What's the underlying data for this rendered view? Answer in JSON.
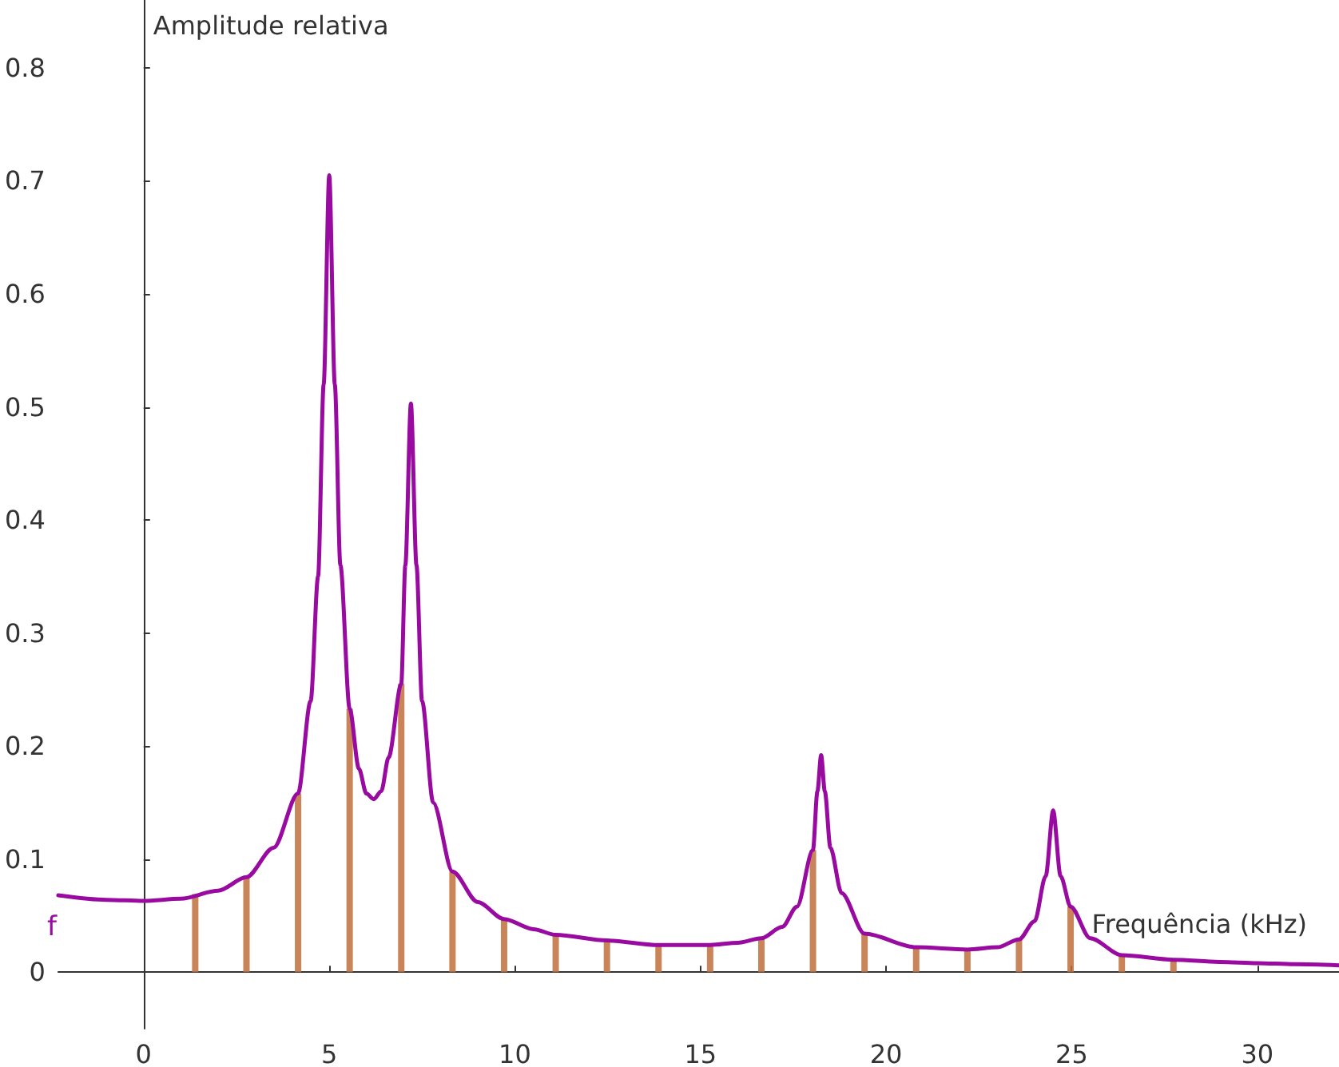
{
  "chart_data": {
    "type": "line",
    "xlabel": "Frequência (kHz)",
    "ylabel": "Amplitude relativa",
    "xlim": [
      -2.3,
      32.2
    ],
    "ylim": [
      -0.05,
      0.86
    ],
    "xticks": [
      0,
      5,
      10,
      15,
      20,
      25,
      30
    ],
    "yticks": [
      0,
      0.1,
      0.2,
      0.3,
      0.4,
      0.5,
      0.6,
      0.7,
      0.8
    ],
    "legend": false,
    "marker": "none",
    "line_style": "solid",
    "series": [
      {
        "type": "bar",
        "color": "#c0703c",
        "x": [
          1.39,
          2.77,
          4.16,
          5.55,
          6.94,
          8.32,
          9.71,
          11.1,
          12.48,
          13.87,
          15.26,
          16.64,
          18.03,
          19.42,
          20.81,
          22.19,
          23.58,
          24.97,
          26.35,
          27.74
        ],
        "values": [
          0.069,
          0.084,
          0.158,
          0.233,
          0.255,
          0.089,
          0.047,
          0.033,
          0.028,
          0.024,
          0.024,
          0.03,
          0.108,
          0.034,
          0.022,
          0.02,
          0.029,
          0.058,
          0.015,
          0.011
        ]
      },
      {
        "name": "f",
        "color": "#990aa0",
        "x": [
          -2.3,
          -1,
          0,
          1,
          2,
          2.77,
          3.5,
          4.16,
          4.5,
          4.7,
          4.85,
          5.0,
          5.15,
          5.3,
          5.55,
          5.8,
          6.0,
          6.2,
          6.4,
          6.6,
          6.94,
          7.05,
          7.2,
          7.35,
          7.5,
          7.8,
          8.32,
          9,
          9.71,
          10.5,
          11.1,
          12.48,
          13.87,
          15.26,
          16,
          16.64,
          17.2,
          17.6,
          18.03,
          18.15,
          18.25,
          18.35,
          18.5,
          18.8,
          19.42,
          20.81,
          22.19,
          23,
          23.58,
          24,
          24.3,
          24.5,
          24.7,
          24.97,
          25.5,
          26.35,
          27.74,
          29,
          30,
          31,
          32.2
        ],
        "values": [
          0.068,
          0.064,
          0.063,
          0.065,
          0.072,
          0.084,
          0.11,
          0.158,
          0.24,
          0.35,
          0.52,
          0.705,
          0.52,
          0.36,
          0.233,
          0.18,
          0.158,
          0.153,
          0.16,
          0.19,
          0.255,
          0.36,
          0.503,
          0.36,
          0.24,
          0.15,
          0.089,
          0.062,
          0.047,
          0.038,
          0.033,
          0.028,
          0.024,
          0.024,
          0.026,
          0.03,
          0.04,
          0.058,
          0.108,
          0.16,
          0.192,
          0.16,
          0.11,
          0.07,
          0.034,
          0.022,
          0.02,
          0.022,
          0.029,
          0.045,
          0.085,
          0.143,
          0.085,
          0.058,
          0.03,
          0.015,
          0.011,
          0.009,
          0.008,
          0.007,
          0.006
        ]
      }
    ]
  }
}
